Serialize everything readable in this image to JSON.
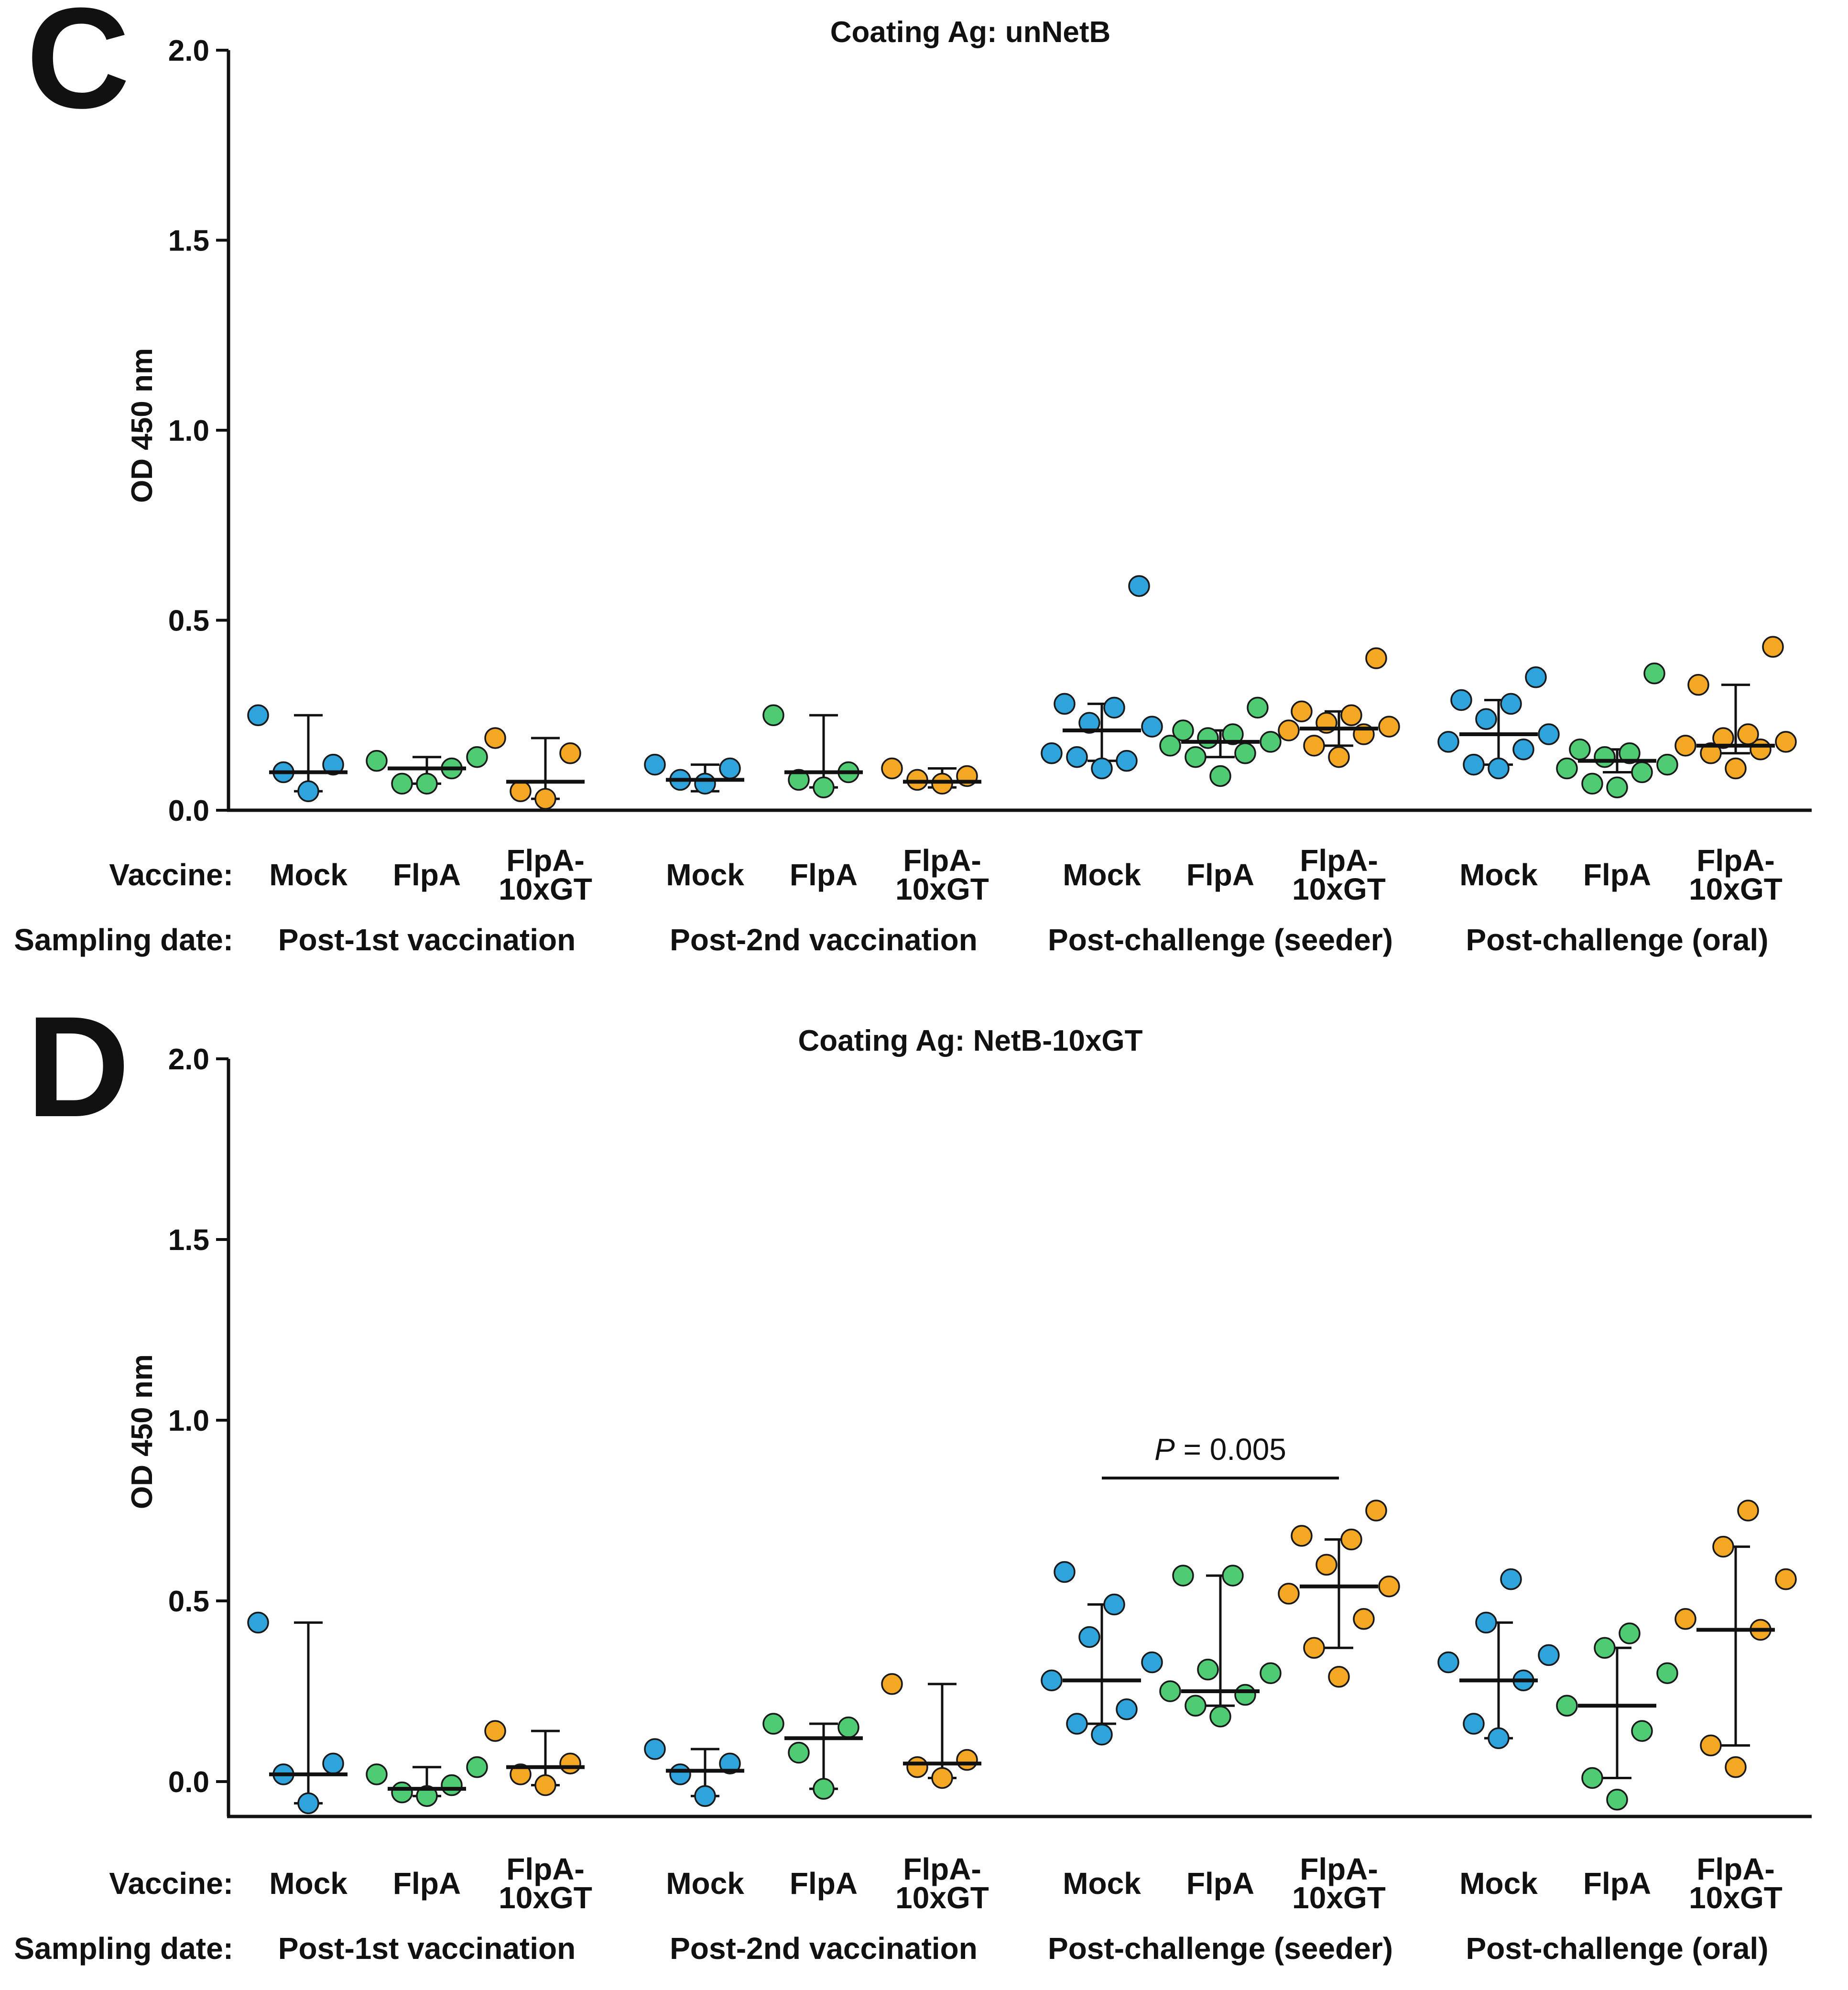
{
  "chart_data": [
    {
      "panel": "C",
      "type": "scatter",
      "title": "Coating Ag: unNetB",
      "ylabel": "OD 450 nm",
      "ylim": [
        0,
        2.0
      ],
      "yticks": [
        "0.0",
        "0.5",
        "1.0",
        "1.5",
        "2.0"
      ],
      "row_labels": {
        "vaccine": "Vaccine:",
        "sampling": "Sampling date:"
      },
      "groups": [
        {
          "date": "Post-1st vaccination",
          "vaccines": [
            {
              "label": "Mock",
              "color": "#2ea3dc",
              "median": 0.1,
              "iqr": [
                0.05,
                0.25
              ],
              "points": [
                0.05,
                0.1,
                0.12,
                0.25
              ]
            },
            {
              "label": "FlpA",
              "color": "#4fcb74",
              "median": 0.11,
              "iqr": [
                0.07,
                0.14
              ],
              "points": [
                0.07,
                0.07,
                0.11,
                0.13,
                0.14
              ]
            },
            {
              "label": "FlpA-\n10xGT",
              "color": "#f3a722",
              "median": 0.075,
              "iqr": [
                0.03,
                0.19
              ],
              "points": [
                0.03,
                0.05,
                0.15,
                0.19
              ]
            }
          ]
        },
        {
          "date": "Post-2nd vaccination",
          "vaccines": [
            {
              "label": "Mock",
              "color": "#2ea3dc",
              "median": 0.08,
              "iqr": [
                0.05,
                0.12
              ],
              "points": [
                0.07,
                0.08,
                0.11,
                0.12
              ]
            },
            {
              "label": "FlpA",
              "color": "#4fcb74",
              "median": 0.1,
              "iqr": [
                0.06,
                0.25
              ],
              "points": [
                0.06,
                0.08,
                0.1,
                0.25
              ]
            },
            {
              "label": "FlpA-\n10xGT",
              "color": "#f3a722",
              "median": 0.075,
              "iqr": [
                0.06,
                0.11
              ],
              "points": [
                0.07,
                0.08,
                0.09,
                0.11
              ]
            }
          ]
        },
        {
          "date": "Post-challenge (seeder)",
          "vaccines": [
            {
              "label": "Mock",
              "color": "#2ea3dc",
              "median": 0.21,
              "iqr": [
                0.13,
                0.28
              ],
              "points": [
                0.11,
                0.14,
                0.13,
                0.15,
                0.22,
                0.23,
                0.27,
                0.28,
                0.59
              ]
            },
            {
              "label": "FlpA",
              "color": "#4fcb74",
              "median": 0.18,
              "iqr": [
                0.14,
                0.21
              ],
              "points": [
                0.09,
                0.14,
                0.15,
                0.17,
                0.18,
                0.19,
                0.2,
                0.21,
                0.27
              ]
            },
            {
              "label": "FlpA-\n10xGT",
              "color": "#f3a722",
              "median": 0.215,
              "iqr": [
                0.17,
                0.26
              ],
              "points": [
                0.14,
                0.17,
                0.2,
                0.21,
                0.22,
                0.23,
                0.25,
                0.26,
                0.4
              ]
            }
          ]
        },
        {
          "date": "Post-challenge (oral)",
          "vaccines": [
            {
              "label": "Mock",
              "color": "#2ea3dc",
              "median": 0.2,
              "iqr": [
                0.12,
                0.29
              ],
              "points": [
                0.11,
                0.12,
                0.16,
                0.18,
                0.2,
                0.24,
                0.28,
                0.29,
                0.35
              ]
            },
            {
              "label": "FlpA",
              "color": "#4fcb74",
              "median": 0.13,
              "iqr": [
                0.1,
                0.16
              ],
              "points": [
                0.06,
                0.07,
                0.1,
                0.11,
                0.12,
                0.14,
                0.15,
                0.16,
                0.36
              ]
            },
            {
              "label": "FlpA-\n10xGT",
              "color": "#f3a722",
              "median": 0.17,
              "iqr": [
                0.15,
                0.33
              ],
              "points": [
                0.11,
                0.15,
                0.16,
                0.17,
                0.18,
                0.19,
                0.2,
                0.33,
                0.43
              ]
            }
          ]
        }
      ]
    },
    {
      "panel": "D",
      "type": "scatter",
      "title": "Coating Ag: NetB-10xGT",
      "ylabel": "OD 450 nm",
      "ylim": [
        -0.1,
        2.0
      ],
      "yticks": [
        "0.0",
        "0.5",
        "1.0",
        "1.5",
        "2.0"
      ],
      "row_labels": {
        "vaccine": "Vaccine:",
        "sampling": "Sampling date:"
      },
      "annotation": {
        "prefix": "P",
        "text": " = 0.005",
        "from_group": 2,
        "from_vaccine": 0,
        "to_group": 2,
        "to_vaccine": 2,
        "y": 0.84
      },
      "groups": [
        {
          "date": "Post-1st vaccination",
          "vaccines": [
            {
              "label": "Mock",
              "color": "#2ea3dc",
              "median": 0.02,
              "iqr": [
                -0.06,
                0.44
              ],
              "points": [
                -0.06,
                0.02,
                0.05,
                0.44
              ]
            },
            {
              "label": "FlpA",
              "color": "#4fcb74",
              "median": -0.02,
              "iqr": [
                -0.04,
                0.04
              ],
              "points": [
                -0.04,
                -0.03,
                -0.01,
                0.02,
                0.04
              ]
            },
            {
              "label": "FlpA-\n10xGT",
              "color": "#f3a722",
              "median": 0.04,
              "iqr": [
                -0.01,
                0.14
              ],
              "points": [
                -0.01,
                0.02,
                0.05,
                0.14
              ]
            }
          ]
        },
        {
          "date": "Post-2nd vaccination",
          "vaccines": [
            {
              "label": "Mock",
              "color": "#2ea3dc",
              "median": 0.03,
              "iqr": [
                -0.04,
                0.09
              ],
              "points": [
                -0.04,
                0.02,
                0.05,
                0.09
              ]
            },
            {
              "label": "FlpA",
              "color": "#4fcb74",
              "median": 0.12,
              "iqr": [
                -0.02,
                0.16
              ],
              "points": [
                -0.02,
                0.08,
                0.15,
                0.16
              ]
            },
            {
              "label": "FlpA-\n10xGT",
              "color": "#f3a722",
              "median": 0.05,
              "iqr": [
                0.01,
                0.27
              ],
              "points": [
                0.01,
                0.04,
                0.06,
                0.27
              ]
            }
          ]
        },
        {
          "date": "Post-challenge (seeder)",
          "vaccines": [
            {
              "label": "Mock",
              "color": "#2ea3dc",
              "median": 0.28,
              "iqr": [
                0.16,
                0.49
              ],
              "points": [
                0.13,
                0.16,
                0.2,
                0.28,
                0.33,
                0.4,
                0.49,
                0.58
              ]
            },
            {
              "label": "FlpA",
              "color": "#4fcb74",
              "median": 0.25,
              "iqr": [
                0.21,
                0.57
              ],
              "points": [
                0.18,
                0.21,
                0.24,
                0.25,
                0.3,
                0.31,
                0.57,
                0.57
              ]
            },
            {
              "label": "FlpA-\n10xGT",
              "color": "#f3a722",
              "median": 0.54,
              "iqr": [
                0.37,
                0.67
              ],
              "points": [
                0.29,
                0.37,
                0.45,
                0.52,
                0.54,
                0.6,
                0.67,
                0.68,
                0.75
              ]
            }
          ]
        },
        {
          "date": "Post-challenge (oral)",
          "vaccines": [
            {
              "label": "Mock",
              "color": "#2ea3dc",
              "median": 0.28,
              "iqr": [
                0.12,
                0.44
              ],
              "points": [
                0.12,
                0.16,
                0.28,
                0.33,
                0.35,
                0.44,
                0.56
              ]
            },
            {
              "label": "FlpA",
              "color": "#4fcb74",
              "median": 0.21,
              "iqr": [
                0.01,
                0.37
              ],
              "points": [
                -0.05,
                0.01,
                0.14,
                0.21,
                0.3,
                0.37,
                0.41
              ]
            },
            {
              "label": "FlpA-\n10xGT",
              "color": "#f3a722",
              "median": 0.42,
              "iqr": [
                0.1,
                0.65
              ],
              "points": [
                0.04,
                0.1,
                0.42,
                0.45,
                0.56,
                0.65,
                0.75
              ]
            }
          ]
        }
      ]
    }
  ]
}
